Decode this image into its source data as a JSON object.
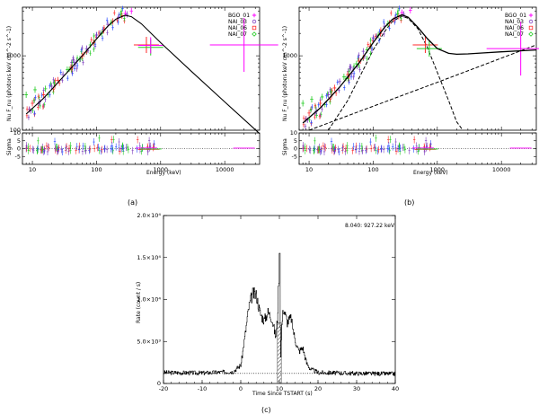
{
  "colors": {
    "BGO_01": "#ff00ff",
    "NAI_03": "#7f3fbf",
    "NAI_06": "#ff2a2a",
    "NAI_07": "#22cc22",
    "extra": "#2a4cff",
    "model": "#000000",
    "hatch": "#555555"
  },
  "chart_data": [
    {
      "type": "scatter",
      "panel": "a",
      "caption": "(a)",
      "xlabel": "Energy (keV)",
      "ylabel": "Nu F_nu (photons keV cm^-2 s^-1)",
      "xscale": "log",
      "yscale": "log",
      "xlim": [
        7,
        35000
      ],
      "ylim": [
        100,
        4500
      ],
      "xticks": [
        10,
        100,
        1000,
        10000
      ],
      "xtick_labels": [
        "10",
        "100",
        "1000",
        "10000"
      ],
      "yticks": [
        100,
        1000
      ],
      "ytick_labels": [
        "100",
        "1000"
      ],
      "legend": [
        "BGO_01",
        "NAI_03",
        "NAI_06",
        "NAI_07"
      ],
      "legend_position": "top-right",
      "model_curve": {
        "x": [
          8,
          15,
          30,
          60,
          100,
          150,
          200,
          280,
          350,
          500,
          1000,
          3000,
          10000,
          35000
        ],
        "y": [
          165,
          270,
          520,
          1000,
          1680,
          2500,
          3100,
          3500,
          3350,
          2700,
          1500,
          620,
          240,
          90
        ]
      },
      "series": [
        {
          "name": "NAI_03",
          "x": [
            9,
            13,
            20,
            30,
            45,
            70,
            100,
            150,
            220,
            300
          ],
          "y": [
            190,
            240,
            390,
            560,
            820,
            1250,
            1900,
            2650,
            3300,
            3600
          ]
        },
        {
          "name": "NAI_06",
          "x": [
            10,
            15,
            25,
            40,
            60,
            90,
            130,
            180,
            250,
            600
          ],
          "y": [
            230,
            300,
            470,
            700,
            1000,
            1500,
            2200,
            2900,
            3450,
            1400
          ]
        },
        {
          "name": "NAI_07",
          "x": [
            8,
            11,
            16,
            22,
            35,
            55,
            80,
            120,
            170,
            240,
            700
          ],
          "y": [
            300,
            350,
            360,
            430,
            650,
            900,
            1400,
            2000,
            2800,
            3600,
            1300
          ]
        },
        {
          "name": "BGO_01",
          "x": [
            280,
            350,
            700,
            20000
          ],
          "y": [
            3700,
            4000,
            1380,
            1400
          ]
        }
      ],
      "residuals": {
        "ylabel": "Sigma",
        "ylim": [
          -10,
          10
        ],
        "yticks": [
          -5,
          0,
          5,
          10
        ],
        "ytick_labels": [
          "-5",
          "0",
          "5",
          "10"
        ]
      }
    },
    {
      "type": "scatter",
      "panel": "b",
      "caption": "(b)",
      "xlabel": "Energy (keV)",
      "ylabel": "Nu F_nu (photons keV cm^-2 s^-1)",
      "xscale": "log",
      "yscale": "log",
      "xlim": [
        7,
        35000
      ],
      "ylim": [
        100,
        4500
      ],
      "xticks": [
        10,
        100,
        1000,
        10000
      ],
      "xtick_labels": [
        "10",
        "100",
        "1000",
        "10000"
      ],
      "yticks": [
        1000
      ],
      "ytick_labels": [
        "1000"
      ],
      "legend": [
        "BGO_01",
        "NAI_03",
        "NAI_06",
        "NAI_07"
      ],
      "legend_position": "top-right",
      "model_curve": {
        "x": [
          8,
          15,
          30,
          60,
          100,
          150,
          200,
          280,
          350,
          500,
          700,
          1000,
          1500,
          2000,
          3000,
          5000,
          10000,
          35000
        ],
        "y": [
          125,
          200,
          380,
          800,
          1500,
          2400,
          3100,
          3550,
          3300,
          2400,
          1700,
          1250,
          1080,
          1050,
          1060,
          1090,
          1130,
          1200
        ]
      },
      "component_band": {
        "x": [
          20,
          40,
          70,
          100,
          150,
          200,
          280,
          350,
          500,
          700,
          1000,
          1500,
          2000,
          2500
        ],
        "y": [
          100,
          250,
          650,
          1200,
          2100,
          2900,
          3400,
          3200,
          2300,
          1300,
          600,
          250,
          130,
          100
        ]
      },
      "component_powerlaw": {
        "x": [
          10,
          100,
          1000,
          10000,
          35000
        ],
        "y": [
          100,
          210,
          440,
          930,
          1400
        ]
      },
      "series": [
        {
          "name": "NAI_03",
          "x": [
            9,
            13,
            20,
            30,
            45,
            70,
            100,
            150,
            220,
            300
          ],
          "y": [
            140,
            180,
            300,
            450,
            700,
            1150,
            1750,
            2500,
            3200,
            3600
          ]
        },
        {
          "name": "NAI_06",
          "x": [
            10,
            15,
            25,
            40,
            60,
            90,
            130,
            180,
            250,
            650
          ],
          "y": [
            170,
            230,
            370,
            560,
            850,
            1350,
            2000,
            2750,
            3400,
            1400
          ]
        },
        {
          "name": "NAI_07",
          "x": [
            8,
            11,
            16,
            22,
            35,
            55,
            80,
            120,
            170,
            240,
            750
          ],
          "y": [
            230,
            260,
            280,
            330,
            520,
            780,
            1200,
            1900,
            2700,
            3650,
            1250
          ]
        },
        {
          "name": "BGO_01",
          "x": [
            280,
            380,
            20000
          ],
          "y": [
            3800,
            4100,
            1250
          ]
        }
      ],
      "residuals": {
        "ylabel": "Sigma",
        "ylim": [
          -10,
          10
        ],
        "yticks": [
          -5,
          0,
          5,
          10
        ],
        "ytick_labels": [
          "-5",
          "0",
          "5",
          "10"
        ]
      }
    },
    {
      "type": "line",
      "panel": "c",
      "caption": "(c)",
      "annotation": "8.040: 927.22 keV",
      "xlabel": "Time Since TSTART (s)",
      "ylabel": "Rate (count / s)",
      "xlim": [
        -20,
        40
      ],
      "ylim": [
        0,
        20000
      ],
      "xticks": [
        -20,
        -10,
        0,
        10,
        20,
        30,
        40
      ],
      "xtick_labels": [
        "-20",
        "-10",
        "0",
        "10",
        "20",
        "30",
        "40"
      ],
      "yticks": [
        0,
        5000,
        10000,
        15000,
        20000
      ],
      "ytick_labels": [
        "0",
        "5.0×10³",
        "1.0×10⁴",
        "1.5×10⁴",
        "2.0×10⁴"
      ],
      "background_level": 1200,
      "selection_interval": [
        9.5,
        10.5
      ],
      "x": [
        -20,
        -10,
        -2,
        0,
        1,
        2,
        3,
        4,
        5,
        6,
        7,
        8,
        9,
        9.5,
        10,
        10.3,
        10.6,
        11,
        12,
        13,
        14,
        15,
        16,
        17,
        18,
        20,
        25,
        30,
        40
      ],
      "y": [
        1300,
        1250,
        1400,
        2200,
        5500,
        9000,
        10700,
        10500,
        8300,
        7500,
        8500,
        7800,
        5500,
        8000,
        15500,
        3000,
        7000,
        9000,
        7300,
        7800,
        5200,
        3800,
        4300,
        2400,
        1700,
        1300,
        1250,
        1200,
        1150
      ]
    }
  ]
}
